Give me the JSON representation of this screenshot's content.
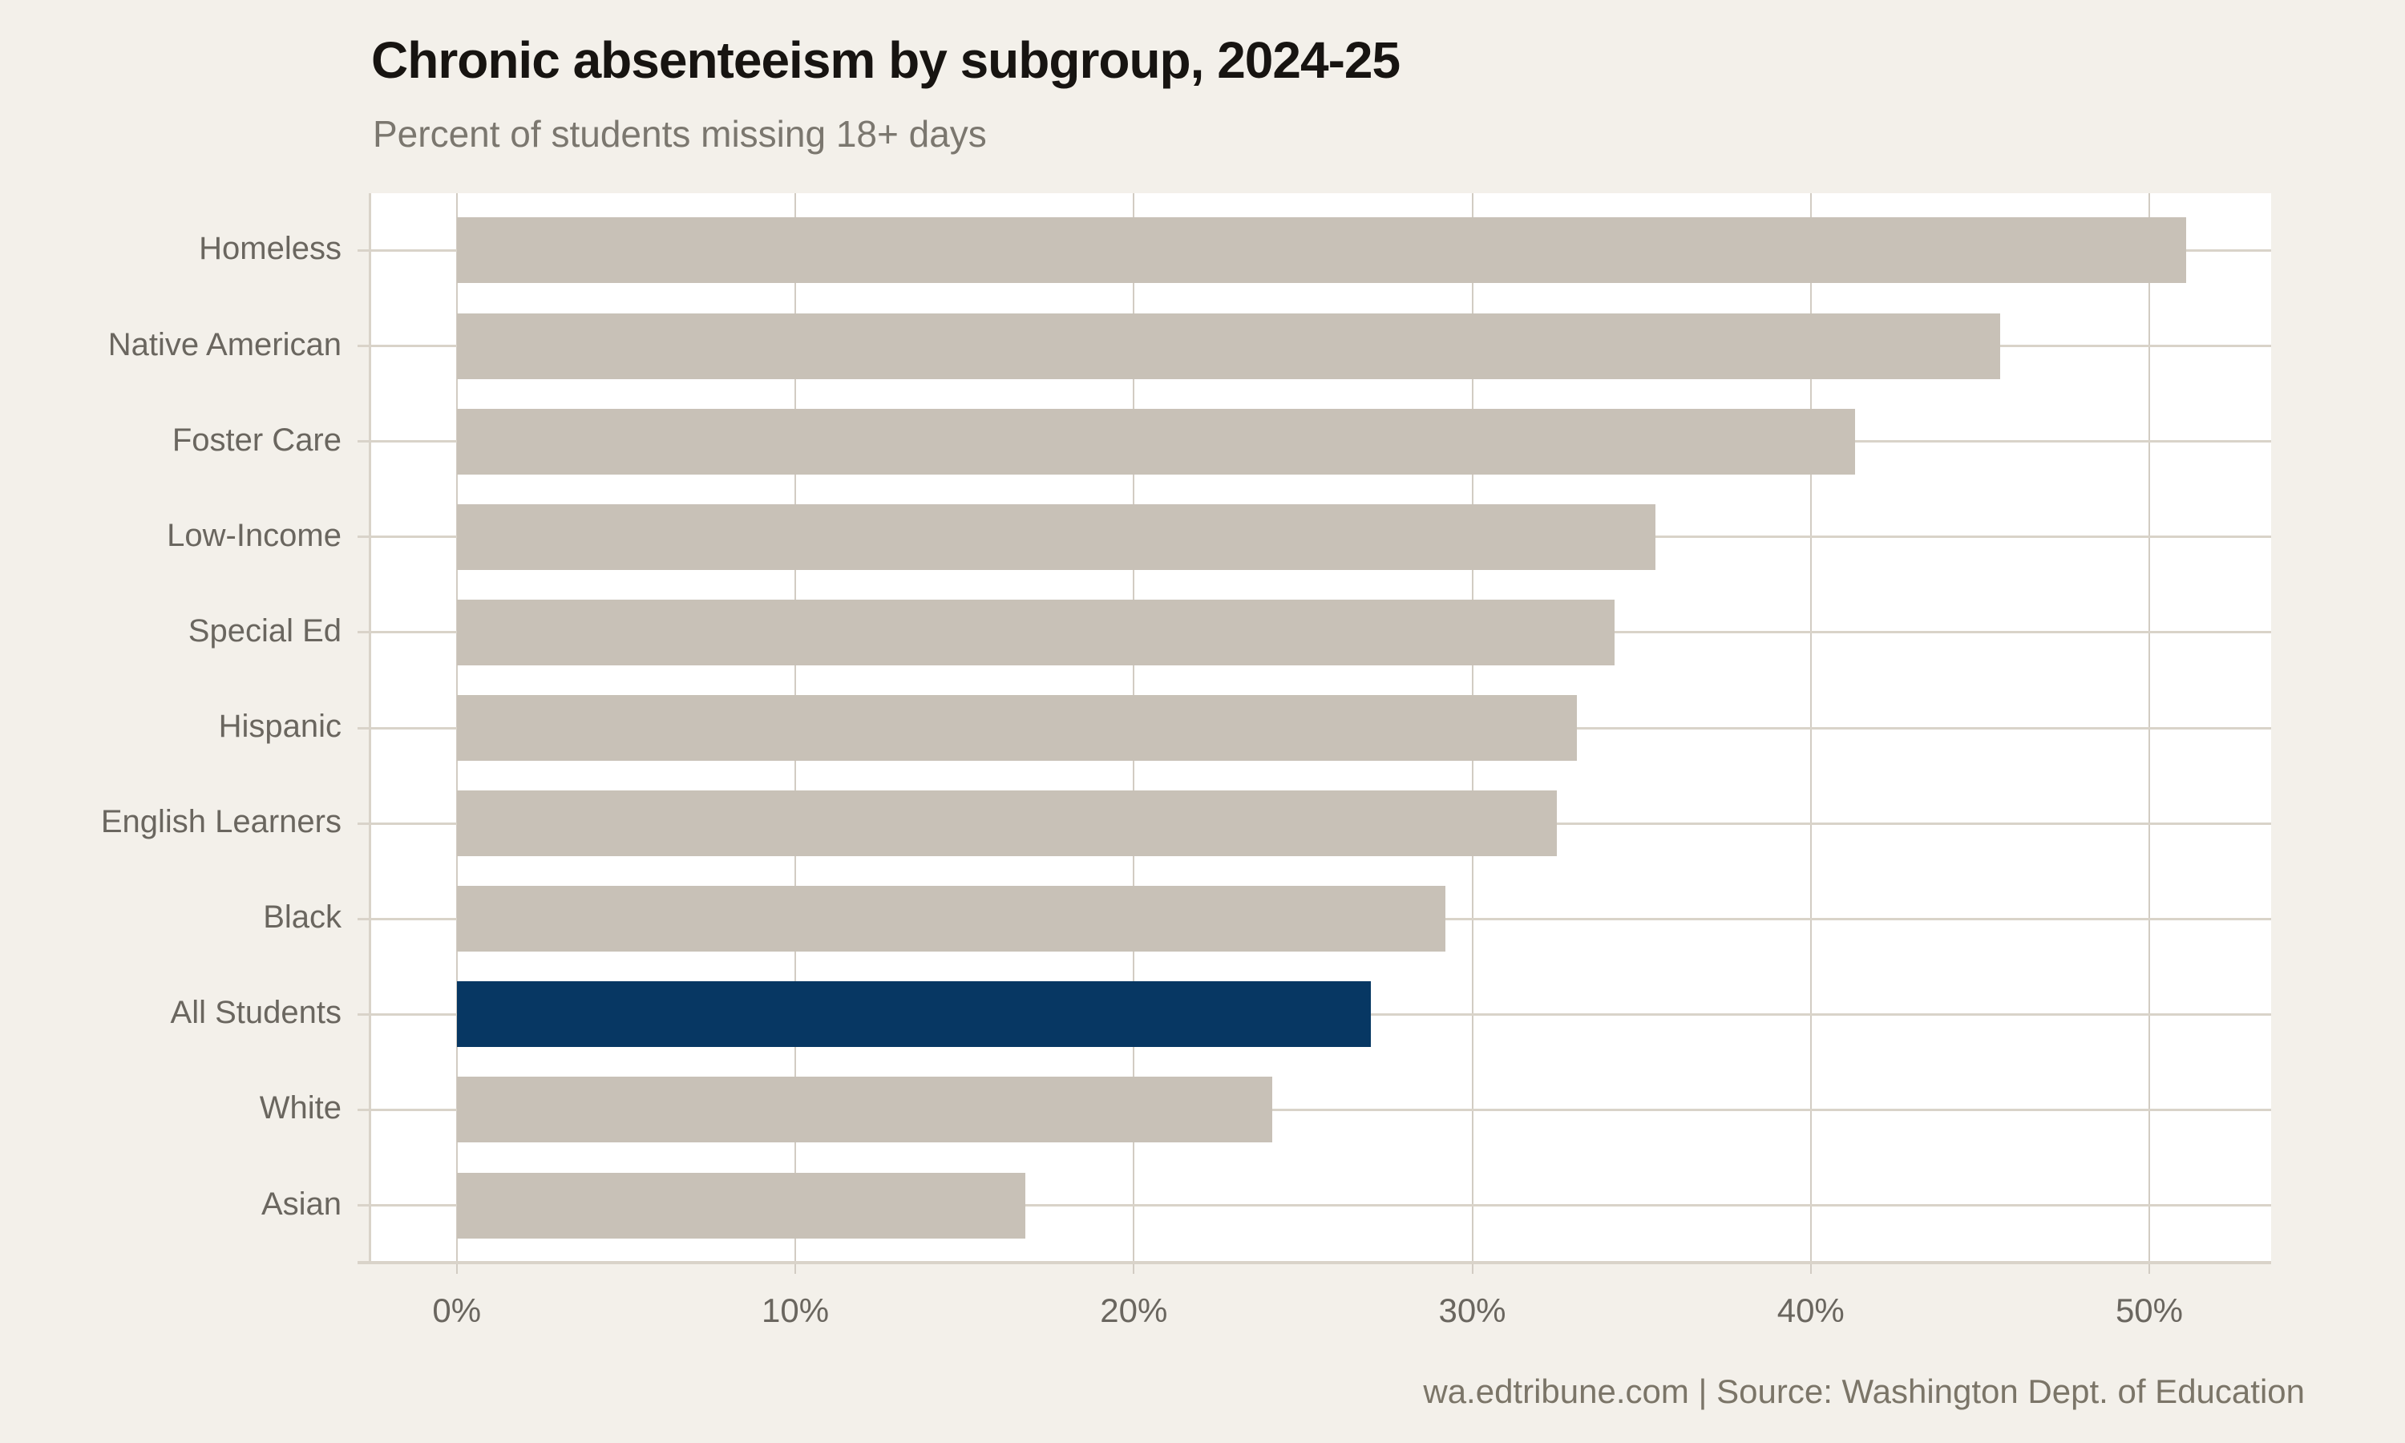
{
  "chart_data": {
    "type": "bar",
    "orientation": "horizontal",
    "title": "Chronic absenteeism by subgroup, 2024-25",
    "subtitle": "Percent of students missing 18+ days",
    "xlabel": "",
    "ylabel": "",
    "categories": [
      "Homeless",
      "Native American",
      "Foster Care",
      "Low-Income",
      "Special Ed",
      "Hispanic",
      "English Learners",
      "Black",
      "All Students",
      "White",
      "Asian"
    ],
    "values": [
      51.1,
      45.6,
      41.3,
      35.4,
      34.2,
      33.1,
      32.5,
      29.2,
      27.0,
      24.1,
      16.8
    ],
    "highlight_category": "All Students",
    "highlight_index": 8,
    "x_ticks": [
      {
        "value": 0,
        "label": "0%"
      },
      {
        "value": 10,
        "label": "10%"
      },
      {
        "value": 20,
        "label": "20%"
      },
      {
        "value": 30,
        "label": "30%"
      },
      {
        "value": 40,
        "label": "40%"
      },
      {
        "value": 50,
        "label": "50%"
      }
    ],
    "xlim": [
      -2.6,
      53.6
    ],
    "grid": "vertical-on",
    "legend": "none",
    "footer": "wa.edtribune.com | Source: Washington Dept. of Education"
  },
  "colors": {
    "background": "#f3f0ea",
    "panel": "#ffffff",
    "bar": "#c8c1b7",
    "highlight": "#073763",
    "grid": "#d2ccc3",
    "axis_line": "#d9d3c9",
    "title_text": "#171411",
    "subtitle_text": "#7b776f",
    "label_text": "#6a665f",
    "tick_text": "#6a665f",
    "footer_text": "#7b7568"
  }
}
